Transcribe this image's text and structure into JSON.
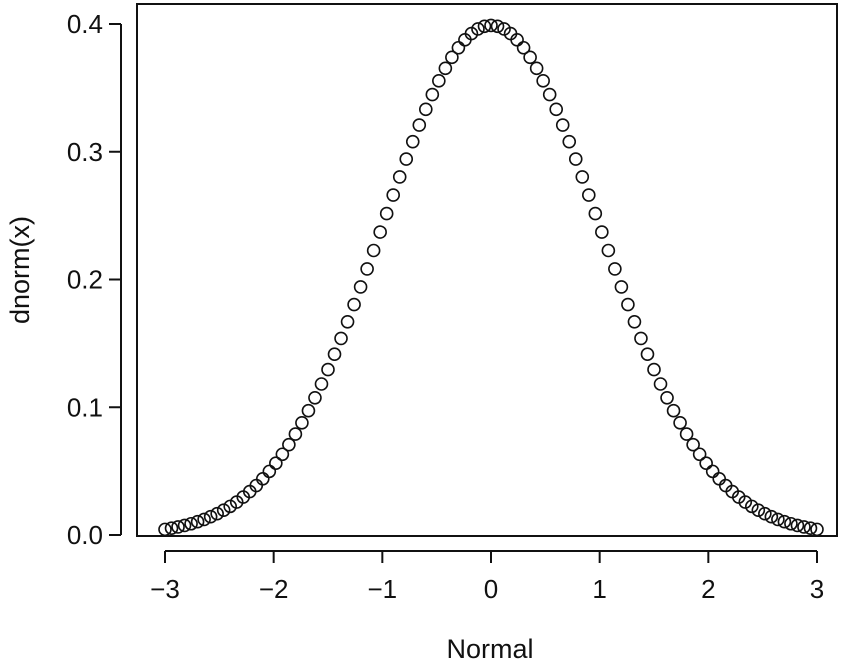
{
  "chart_data": {
    "type": "scatter",
    "title": "",
    "xlabel": "Normal",
    "ylabel": "dnorm(x)",
    "xlim": [
      -3,
      3
    ],
    "ylim": [
      0,
      0.4
    ],
    "x_ticks": [
      -3,
      -2,
      -1,
      0,
      1,
      2,
      3
    ],
    "x_tick_labels": [
      "−3",
      "−2",
      "−1",
      "0",
      "1",
      "2",
      "3"
    ],
    "y_ticks": [
      0.0,
      0.1,
      0.2,
      0.3,
      0.4
    ],
    "y_tick_labels": [
      "0.0",
      "0.1",
      "0.2",
      "0.3",
      "0.4"
    ],
    "marker": "open-circle",
    "grid": false,
    "series": [
      {
        "x": [
          -3.0,
          -2.94,
          -2.88,
          -2.82,
          -2.76,
          -2.7,
          -2.64,
          -2.58,
          -2.52,
          -2.46,
          -2.4,
          -2.34,
          -2.28,
          -2.22,
          -2.16,
          -2.1,
          -2.04,
          -1.98,
          -1.92,
          -1.86,
          -1.8,
          -1.74,
          -1.68,
          -1.62,
          -1.56,
          -1.5,
          -1.44,
          -1.38,
          -1.32,
          -1.26,
          -1.2,
          -1.14,
          -1.08,
          -1.02,
          -0.96,
          -0.9,
          -0.84,
          -0.78,
          -0.72,
          -0.66,
          -0.6,
          -0.54,
          -0.48,
          -0.42,
          -0.36,
          -0.3,
          -0.24,
          -0.18,
          -0.12,
          -0.06,
          0.0,
          0.06,
          0.12,
          0.18,
          0.24,
          0.3,
          0.36,
          0.42,
          0.48,
          0.54,
          0.6,
          0.66,
          0.72,
          0.78,
          0.84,
          0.9,
          0.96,
          1.02,
          1.08,
          1.14,
          1.2,
          1.26,
          1.32,
          1.38,
          1.44,
          1.5,
          1.56,
          1.62,
          1.68,
          1.74,
          1.8,
          1.86,
          1.92,
          1.98,
          2.04,
          2.1,
          2.16,
          2.22,
          2.28,
          2.34,
          2.4,
          2.46,
          2.52,
          2.58,
          2.64,
          2.7,
          2.76,
          2.82,
          2.88,
          2.94,
          3.0
        ],
        "y": [
          0.0044,
          0.0053,
          0.0063,
          0.0075,
          0.0088,
          0.0104,
          0.0122,
          0.0143,
          0.0167,
          0.0194,
          0.0224,
          0.0258,
          0.0297,
          0.034,
          0.0387,
          0.044,
          0.0498,
          0.0562,
          0.0632,
          0.0707,
          0.079,
          0.0878,
          0.0973,
          0.1074,
          0.1182,
          0.1295,
          0.1415,
          0.1539,
          0.1669,
          0.1804,
          0.1942,
          0.2083,
          0.2227,
          0.2371,
          0.2516,
          0.2661,
          0.2803,
          0.2943,
          0.3079,
          0.3209,
          0.3332,
          0.3448,
          0.3555,
          0.3653,
          0.3739,
          0.3814,
          0.3876,
          0.3925,
          0.3961,
          0.3982,
          0.3989,
          0.3982,
          0.3961,
          0.3925,
          0.3876,
          0.3814,
          0.3739,
          0.3653,
          0.3555,
          0.3448,
          0.3332,
          0.3209,
          0.3079,
          0.2943,
          0.2803,
          0.2661,
          0.2516,
          0.2371,
          0.2227,
          0.2083,
          0.1942,
          0.1804,
          0.1669,
          0.1539,
          0.1415,
          0.1295,
          0.1182,
          0.1074,
          0.0973,
          0.0878,
          0.079,
          0.0707,
          0.0632,
          0.0562,
          0.0498,
          0.044,
          0.0387,
          0.034,
          0.0297,
          0.0258,
          0.0224,
          0.0194,
          0.0167,
          0.0143,
          0.0122,
          0.0104,
          0.0088,
          0.0075,
          0.0063,
          0.0053,
          0.0044
        ]
      }
    ]
  }
}
